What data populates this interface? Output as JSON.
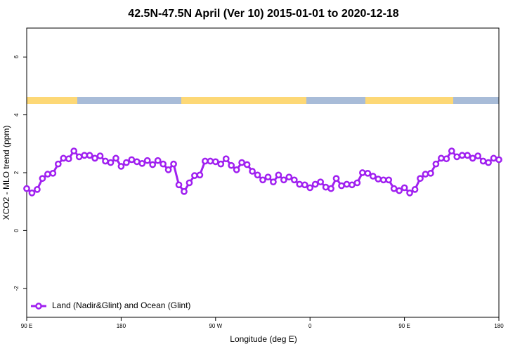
{
  "chart_data": {
    "type": "line",
    "title": "42.5N-47.5N April (Ver 10)   2015-01-01 to 2020-12-18",
    "x_label": "Longitude (deg E)",
    "y_label": "XCO2 - MLO trend (ppm)",
    "xlim": [
      90,
      540
    ],
    "ylim": [
      -3,
      7
    ],
    "xticks": [
      {
        "value": 90,
        "label": "90 E"
      },
      180,
      {
        "value": 270,
        "label": "90 W"
      },
      {
        "value": 360,
        "label": "0"
      },
      {
        "value": 450,
        "label": "90 E"
      },
      {
        "value": 540,
        "label": "180"
      }
    ],
    "yticks": [
      -2,
      0,
      2,
      4,
      6
    ],
    "legend": "bottom-left",
    "x": [
      90,
      95,
      100,
      105,
      110,
      115,
      120,
      125,
      130,
      135,
      140,
      145,
      150,
      155,
      160,
      165,
      170,
      175,
      180,
      185,
      190,
      195,
      200,
      205,
      210,
      215,
      220,
      225,
      230,
      235,
      240,
      245,
      250,
      255,
      260,
      265,
      270,
      275,
      280,
      285,
      290,
      295,
      300,
      305,
      310,
      315,
      320,
      325,
      330,
      335,
      340,
      345,
      350,
      355,
      360,
      365,
      370,
      375,
      380,
      385,
      390,
      395,
      400,
      405,
      410,
      415,
      420,
      425,
      430,
      435,
      440,
      445,
      450,
      455,
      460,
      465,
      470,
      475,
      480,
      485,
      490,
      495,
      500,
      505,
      510,
      515,
      520,
      525,
      530,
      535,
      540
    ],
    "series": [
      {
        "name": "Land (Nadir&Glint) and Ocean (Glint)",
        "color": "#a020f0",
        "values": [
          1.45,
          1.3,
          1.42,
          1.8,
          1.95,
          1.98,
          2.3,
          2.5,
          2.48,
          2.75,
          2.55,
          2.6,
          2.6,
          2.5,
          2.58,
          2.4,
          2.35,
          2.5,
          2.22,
          2.35,
          2.45,
          2.38,
          2.32,
          2.42,
          2.28,
          2.42,
          2.3,
          2.1,
          2.3,
          1.58,
          1.35,
          1.65,
          1.9,
          1.92,
          2.4,
          2.4,
          2.38,
          2.3,
          2.48,
          2.25,
          2.1,
          2.35,
          2.28,
          2.05,
          1.92,
          1.75,
          1.85,
          1.68,
          1.92,
          1.75,
          1.85,
          1.75,
          1.6,
          1.58,
          1.48,
          1.6,
          1.68,
          1.5,
          1.45,
          1.8,
          1.55,
          1.6,
          1.58,
          1.65,
          2.0,
          1.98,
          1.88,
          1.78,
          1.75,
          1.75,
          1.45,
          1.38,
          1.48,
          1.3,
          1.42,
          1.8,
          1.95,
          1.98,
          2.3,
          2.5,
          2.48,
          2.75,
          2.55,
          2.6,
          2.6,
          2.5,
          2.58,
          2.4,
          2.35,
          2.5,
          2.45
        ]
      }
    ]
  }
}
